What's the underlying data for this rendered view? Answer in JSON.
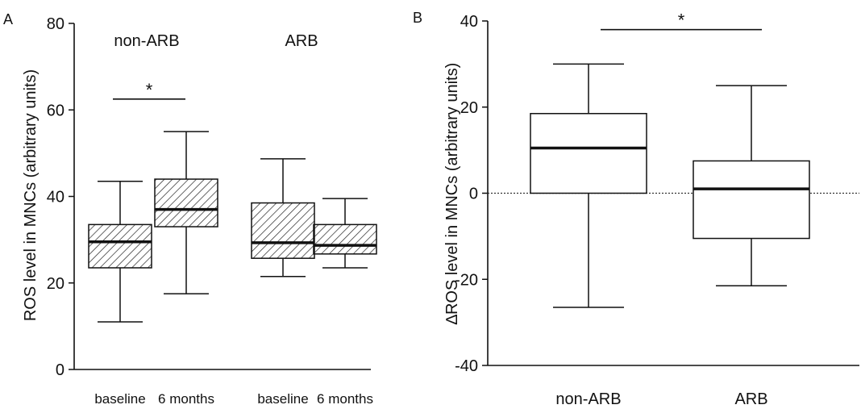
{
  "chart_data": [
    {
      "panel_label": "A",
      "type": "box",
      "ylabel": "ROS level in MNCs (arbitrary units)",
      "ylim": [
        0,
        80
      ],
      "yticks": [
        0,
        20,
        40,
        60,
        80
      ],
      "grid": false,
      "groups": [
        "non-ARB",
        "ARB"
      ],
      "categories": [
        "baseline",
        "6 months",
        "baseline",
        "6 months"
      ],
      "fill": "hatched",
      "boxes": [
        {
          "group": "non-ARB",
          "time": "baseline",
          "min": 11,
          "q1": 23.5,
          "median": 29.5,
          "q3": 33.5,
          "max": 43.5
        },
        {
          "group": "non-ARB",
          "time": "6 months",
          "min": 17.5,
          "q1": 33,
          "median": 37,
          "q3": 44,
          "max": 55
        },
        {
          "group": "ARB",
          "time": "baseline",
          "min": 21.5,
          "q1": 25.7,
          "median": 29.3,
          "q3": 38.5,
          "max": 48.7
        },
        {
          "group": "ARB",
          "time": "6 months",
          "min": 23.5,
          "q1": 26.7,
          "median": 28.7,
          "q3": 33.5,
          "max": 39.5
        }
      ],
      "significance": [
        {
          "between": [
            0,
            1
          ],
          "label": "*",
          "y": 62.5
        }
      ]
    },
    {
      "panel_label": "B",
      "type": "box",
      "ylabel": "∆ROS level in MNCs (arbitrary units)",
      "ylim": [
        -40,
        40
      ],
      "yticks": [
        -40,
        -20,
        0,
        20,
        40
      ],
      "grid": false,
      "categories": [
        "non-ARB",
        "ARB"
      ],
      "fill": "none",
      "reference_line": {
        "y": 0,
        "style": "dotted"
      },
      "boxes": [
        {
          "group": "non-ARB",
          "min": -26.5,
          "q1": 0,
          "median": 10.5,
          "q3": 18.5,
          "max": 30
        },
        {
          "group": "ARB",
          "min": -21.5,
          "q1": -10.5,
          "median": 1,
          "q3": 7.5,
          "max": 25
        }
      ],
      "significance": [
        {
          "between": [
            0,
            1
          ],
          "label": "*",
          "y": 38
        }
      ]
    }
  ]
}
